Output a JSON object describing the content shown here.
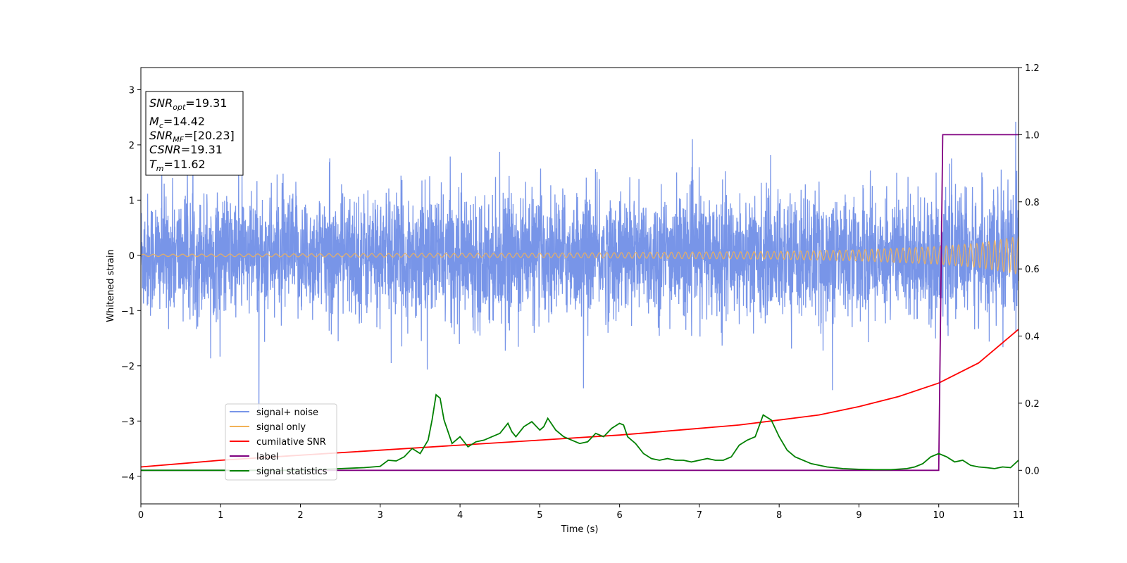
{
  "chart_data": {
    "type": "line",
    "xlabel": "Time (s)",
    "ylabel_left": "Whitened strain",
    "xlim": [
      0,
      11
    ],
    "ylim_left": [
      -4.5,
      3.4
    ],
    "ylim_right": [
      -0.1,
      1.2
    ],
    "x_ticks": [
      0,
      1,
      2,
      3,
      4,
      5,
      6,
      7,
      8,
      9,
      10,
      11
    ],
    "y_ticks_left": [
      -4,
      -3,
      -2,
      -1,
      0,
      1,
      2,
      3
    ],
    "y_ticks_right": [
      "0.0",
      "0.2",
      "0.4",
      "0.6",
      "0.8",
      "1.0",
      "1.2"
    ],
    "grid": false,
    "legend_position": "lower-left",
    "colors": {
      "signal_noise": "#7895e8",
      "signal_only": "#f2b256",
      "cumulative_snr": "#ff0000",
      "label": "#800080",
      "signal_statistics": "#008000"
    },
    "info_box": {
      "snr_opt": {
        "base": "SNR",
        "sub": "opt",
        "value": "=19.31"
      },
      "mc": {
        "base": "M",
        "sub": "c",
        "value": "=14.42"
      },
      "snr_mf": {
        "base": "SNR",
        "sub": "MF",
        "value": "=[20.23]"
      },
      "csnr": {
        "base": "CSNR",
        "sub": "",
        "value": "=19.31"
      },
      "tm": {
        "base": "T",
        "sub": "m",
        "value": "=11.62"
      }
    },
    "series": [
      {
        "name": "signal+ noise",
        "axis": "left",
        "description_values": "noise band approx -1.7..1.7 with spikes to ±3",
        "noise_std": 0.55
      },
      {
        "name": "signal only",
        "axis": "left",
        "amplitude": {
          "x": [
            0,
            5,
            8,
            9,
            10,
            10.5,
            11
          ],
          "y": [
            0.02,
            0.04,
            0.07,
            0.1,
            0.16,
            0.22,
            0.34
          ]
        }
      },
      {
        "name": "cumilative SNR",
        "axis": "right",
        "x": [
          0,
          0.5,
          1,
          2,
          3,
          4,
          5,
          6,
          7,
          7.5,
          8,
          8.5,
          9,
          9.5,
          10,
          10.5,
          11
        ],
        "y": [
          0.01,
          0.02,
          0.03,
          0.045,
          0.06,
          0.075,
          0.09,
          0.105,
          0.125,
          0.135,
          0.15,
          0.165,
          0.19,
          0.22,
          0.26,
          0.32,
          0.42
        ]
      },
      {
        "name": "label",
        "axis": "right",
        "x": [
          0,
          10.0,
          10.05,
          11
        ],
        "y": [
          0,
          0,
          1,
          1
        ]
      },
      {
        "name": "signal statistics",
        "axis": "right",
        "x": [
          0,
          2.0,
          2.5,
          2.8,
          3.0,
          3.1,
          3.2,
          3.3,
          3.4,
          3.5,
          3.6,
          3.65,
          3.7,
          3.75,
          3.8,
          3.9,
          4.0,
          4.1,
          4.2,
          4.3,
          4.4,
          4.5,
          4.6,
          4.65,
          4.7,
          4.8,
          4.9,
          5.0,
          5.05,
          5.1,
          5.2,
          5.3,
          5.4,
          5.5,
          5.6,
          5.7,
          5.8,
          5.9,
          6.0,
          6.05,
          6.1,
          6.2,
          6.3,
          6.4,
          6.5,
          6.6,
          6.7,
          6.8,
          6.9,
          7.0,
          7.1,
          7.2,
          7.3,
          7.4,
          7.5,
          7.6,
          7.7,
          7.8,
          7.9,
          8.0,
          8.1,
          8.2,
          8.4,
          8.6,
          8.8,
          9.0,
          9.2,
          9.4,
          9.6,
          9.7,
          9.8,
          9.9,
          10.0,
          10.1,
          10.2,
          10.3,
          10.4,
          10.5,
          10.6,
          10.7,
          10.8,
          10.9,
          11.0
        ],
        "y": [
          0.0,
          0.0,
          0.005,
          0.008,
          0.012,
          0.03,
          0.028,
          0.04,
          0.065,
          0.05,
          0.09,
          0.15,
          0.225,
          0.215,
          0.15,
          0.08,
          0.1,
          0.07,
          0.085,
          0.09,
          0.1,
          0.11,
          0.14,
          0.115,
          0.1,
          0.13,
          0.145,
          0.12,
          0.13,
          0.155,
          0.12,
          0.1,
          0.09,
          0.08,
          0.085,
          0.11,
          0.1,
          0.125,
          0.14,
          0.135,
          0.1,
          0.08,
          0.05,
          0.035,
          0.03,
          0.035,
          0.03,
          0.03,
          0.025,
          0.03,
          0.035,
          0.03,
          0.03,
          0.04,
          0.075,
          0.09,
          0.1,
          0.165,
          0.15,
          0.1,
          0.06,
          0.04,
          0.02,
          0.01,
          0.005,
          0.003,
          0.002,
          0.002,
          0.005,
          0.01,
          0.02,
          0.04,
          0.05,
          0.04,
          0.025,
          0.03,
          0.015,
          0.01,
          0.008,
          0.005,
          0.01,
          0.008,
          0.03
        ]
      }
    ]
  }
}
